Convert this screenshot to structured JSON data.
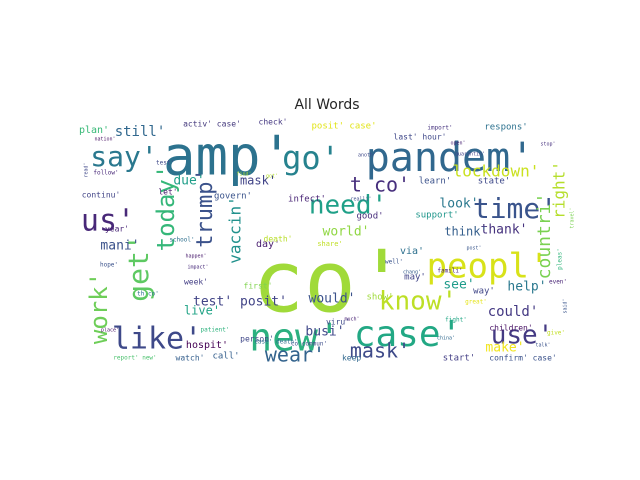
{
  "chart_data": {
    "type": "wordcloud",
    "title": "All Words",
    "words": [
      {
        "text": "co'",
        "color": "#a0da39"
      },
      {
        "text": "amp'",
        "color": "#2c728e"
      },
      {
        "text": "pandem'",
        "color": "#31688e"
      },
      {
        "text": "new'",
        "color": "#2bb07f"
      },
      {
        "text": "case'",
        "color": "#22a884"
      },
      {
        "text": "peopl'",
        "color": "#d8e219"
      },
      {
        "text": "know'",
        "color": "#bddf26"
      },
      {
        "text": "time'",
        "color": "#3a548c"
      },
      {
        "text": "need'",
        "color": "#1fa088"
      },
      {
        "text": "go'",
        "color": "#26828e"
      },
      {
        "text": "say'",
        "color": "#2a788e"
      },
      {
        "text": "like'",
        "color": "#3e4989"
      },
      {
        "text": "use'",
        "color": "#443a83"
      },
      {
        "text": "us'",
        "color": "#482878"
      },
      {
        "text": "get'",
        "color": "#5ec962"
      },
      {
        "text": "work'",
        "color": "#6ece58"
      },
      {
        "text": "today'",
        "color": "#35b779"
      },
      {
        "text": "trump'",
        "color": "#3b528b"
      },
      {
        "text": "wear'",
        "color": "#33638d"
      },
      {
        "text": "mask'",
        "color": "#3e4a89"
      },
      {
        "text": "t co'",
        "color": "#472f7d"
      },
      {
        "text": "lockdown'",
        "color": "#cae11f"
      },
      {
        "text": "countri'",
        "color": "#7ad151"
      },
      {
        "text": "right'",
        "color": "#b5de2b"
      },
      {
        "text": "world'",
        "color": "#90d743"
      },
      {
        "text": "vaccin'",
        "color": "#21918c"
      },
      {
        "text": "test' posit'",
        "color": "#414487"
      },
      {
        "text": "still'",
        "color": "#31688e"
      },
      {
        "text": "mani'",
        "color": "#3b528b"
      },
      {
        "text": "due'",
        "color": "#1f9e89"
      },
      {
        "text": "mask'",
        "color": "#404387"
      },
      {
        "text": "look'",
        "color": "#2a788e"
      },
      {
        "text": "thank'",
        "color": "#46327e"
      },
      {
        "text": "think'",
        "color": "#355f8d"
      },
      {
        "text": "via'",
        "color": "#2d708e"
      },
      {
        "text": "see'",
        "color": "#1e9b8a"
      },
      {
        "text": "help'",
        "color": "#2a788e"
      },
      {
        "text": "could'",
        "color": "#443983"
      },
      {
        "text": "make'",
        "color": "#f1e51d"
      },
      {
        "text": "would'",
        "color": "#3b528b"
      },
      {
        "text": "busi'",
        "color": "#3f4788"
      },
      {
        "text": "live'",
        "color": "#20a386"
      },
      {
        "text": "day'",
        "color": "#481d6f"
      },
      {
        "text": "posit' case'",
        "color": "#e2e418"
      },
      {
        "text": "respons'",
        "color": "#2c718e"
      },
      {
        "text": "state'",
        "color": "#3e4989"
      },
      {
        "text": "plan'",
        "color": "#38b977"
      },
      {
        "text": "activ' case'",
        "color": "#44397d"
      },
      {
        "text": "check'",
        "color": "#453882"
      },
      {
        "text": "govern'",
        "color": "#3a538b"
      },
      {
        "text": "infect'",
        "color": "#482475"
      },
      {
        "text": "hospit'",
        "color": "#440154"
      },
      {
        "text": "call'",
        "color": "#355f8d"
      },
      {
        "text": "start'",
        "color": "#433e85"
      },
      {
        "text": "confirm' case'",
        "color": "#3b528b"
      },
      {
        "text": "watch'",
        "color": "#355f8d"
      },
      {
        "text": "keep'",
        "color": "#31688e"
      },
      {
        "text": "children'",
        "color": "#471063"
      },
      {
        "text": "way'",
        "color": "#404688"
      },
      {
        "text": "show'",
        "color": "#9fda3a"
      },
      {
        "text": "may'",
        "color": "#404387"
      },
      {
        "text": "good'",
        "color": "#472d7b"
      },
      {
        "text": "support'",
        "color": "#1f968b"
      },
      {
        "text": "learn'",
        "color": "#3b528b"
      },
      {
        "text": "last' hour'",
        "color": "#3f4889"
      },
      {
        "text": "continu'",
        "color": "#414487"
      },
      {
        "text": "week'",
        "color": "#433e85"
      },
      {
        "text": "first'",
        "color": "#7fd34e"
      },
      {
        "text": "year'",
        "color": "#482576"
      },
      {
        "text": "let'",
        "color": "#481a6c"
      },
      {
        "text": "viru'",
        "color": "#3e4989"
      },
      {
        "text": "person'",
        "color": "#3f4788"
      },
      {
        "text": "death'",
        "color": "#b8de29"
      },
      {
        "text": "share'",
        "color": "#c0df25"
      },
      {
        "text": "import'",
        "color": "#46337f"
      },
      {
        "text": "test'",
        "color": "#3e4989"
      },
      {
        "text": "follow'",
        "color": "#482878"
      },
      {
        "text": "nation'",
        "color": "#471063"
      },
      {
        "text": "school'",
        "color": "#2e6f8e"
      },
      {
        "text": "hope'",
        "color": "#3b528b"
      },
      {
        "text": "famili'",
        "color": "#482173"
      },
      {
        "text": "realli'",
        "color": "#3d4e8a"
      },
      {
        "text": "patient'",
        "color": "#2db27d"
      },
      {
        "text": "report' new'",
        "color": "#4ac16d"
      },
      {
        "text": "fight'",
        "color": "#22a785"
      },
      {
        "text": "great'",
        "color": "#e5e419"
      },
      {
        "text": "stop'",
        "color": "#46307e"
      },
      {
        "text": "th co'",
        "color": "#2c728e"
      },
      {
        "text": "happen'",
        "color": "#481a6c"
      },
      {
        "text": "impact'",
        "color": "#472a7a"
      },
      {
        "text": "travel'",
        "color": "#7ad151"
      },
      {
        "text": "pleas'",
        "color": "#31b57b"
      },
      {
        "text": "even'",
        "color": "#482475"
      },
      {
        "text": "chang'",
        "color": "#365d8d"
      },
      {
        "text": "post'",
        "color": "#39568c"
      },
      {
        "text": "find'",
        "color": "#a8db34"
      },
      {
        "text": "give'",
        "color": "#c2df23"
      },
      {
        "text": "talk'",
        "color": "#3b528b"
      },
      {
        "text": "said'",
        "color": "#39558c"
      },
      {
        "text": "got'",
        "color": "#b5de2b"
      },
      {
        "text": "much'",
        "color": "#482173"
      },
      {
        "text": "co commun'",
        "color": "#3d4d8a"
      },
      {
        "text": "anoth'",
        "color": "#3e4989"
      },
      {
        "text": "open'",
        "color": "#482374"
      },
      {
        "text": "quarantin'",
        "color": "#414287"
      },
      {
        "text": "read'",
        "color": "#3f4889"
      },
      {
        "text": "place'",
        "color": "#471164"
      },
      {
        "text": "china'",
        "color": "#31688e"
      },
      {
        "text": "case' death'",
        "color": "#2d708e"
      },
      {
        "text": "well'",
        "color": "#3a538b"
      }
    ]
  }
}
